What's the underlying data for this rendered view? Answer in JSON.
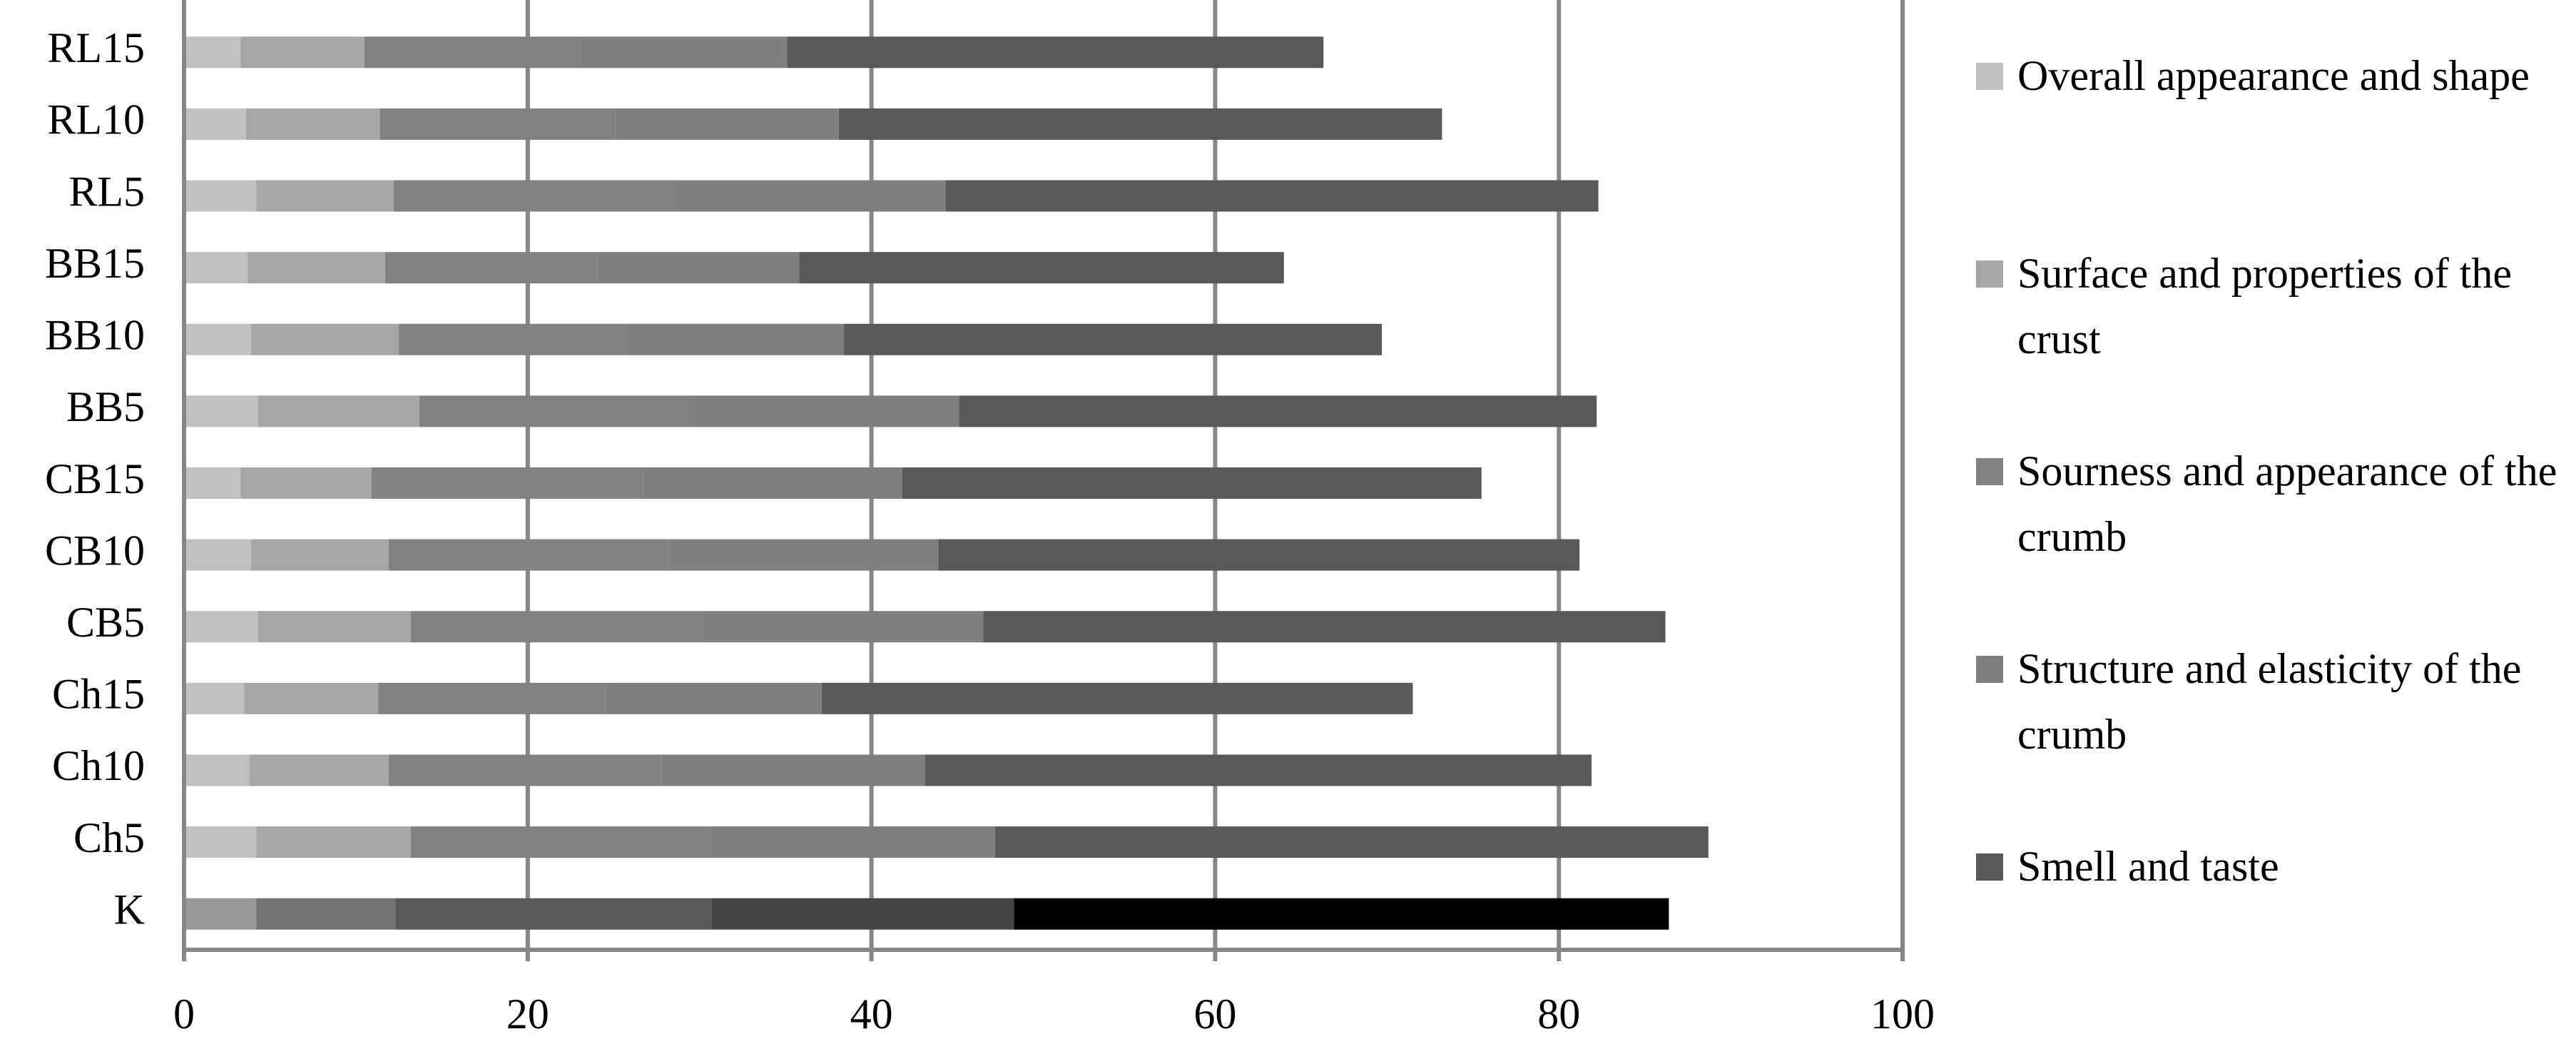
{
  "chart_data": {
    "type": "stacked-barh",
    "categories": [
      "RL15",
      "RL10",
      "RL5",
      "BB15",
      "BB10",
      "BB5",
      "CB15",
      "CB10",
      "CB5",
      "Ch15",
      "Ch10",
      "Ch5",
      "K"
    ],
    "series": [
      {
        "name": "Overall appearance and shape",
        "color": "#c0c0c0",
        "values": [
          3.3,
          3.6,
          4.2,
          3.7,
          3.9,
          4.3,
          3.3,
          3.9,
          4.3,
          3.5,
          3.8,
          4.2,
          4.2
        ],
        "colors": [
          "#c0c0c0",
          "#c0c0c0",
          "#c0c0c0",
          "#c0c0c0",
          "#c0c0c0",
          "#c0c0c0",
          "#c0c0c0",
          "#c0c0c0",
          "#c0c0c0",
          "#c0c0c0",
          "#c0c0c0",
          "#c0c0c0",
          "#999999"
        ]
      },
      {
        "name": "Surface and properties of the crust",
        "color": "#a6a6a6",
        "values": [
          7.2,
          7.8,
          8.0,
          8.0,
          8.6,
          9.4,
          7.6,
          8.0,
          8.9,
          7.8,
          8.1,
          9.0,
          8.1
        ],
        "colors": [
          "#a6a6a6",
          "#a6a6a6",
          "#a6a6a6",
          "#a6a6a6",
          "#a6a6a6",
          "#a6a6a6",
          "#a6a6a6",
          "#a6a6a6",
          "#a6a6a6",
          "#a6a6a6",
          "#a6a6a6",
          "#a6a6a6",
          "#737373"
        ]
      },
      {
        "name": "Sourness and appearance of the crumb",
        "color": "#818181",
        "values": [
          12.6,
          13.7,
          16.4,
          12.3,
          13.2,
          16.0,
          15.8,
          16.3,
          17.0,
          13.2,
          15.9,
          17.4,
          18.4
        ],
        "colors": [
          "#818181",
          "#818181",
          "#818181",
          "#818181",
          "#818181",
          "#818181",
          "#818181",
          "#818181",
          "#818181",
          "#818181",
          "#818181",
          "#818181",
          "#595959"
        ]
      },
      {
        "name": "Structure and elasticity of the crumb",
        "color": "#7f7f7f",
        "values": [
          12.0,
          13.0,
          15.7,
          11.8,
          12.7,
          15.4,
          15.1,
          15.7,
          16.3,
          12.6,
          15.3,
          16.6,
          17.6
        ],
        "colors": [
          "#7f7f7f",
          "#7f7f7f",
          "#7f7f7f",
          "#7f7f7f",
          "#7f7f7f",
          "#7f7f7f",
          "#7f7f7f",
          "#7f7f7f",
          "#7f7f7f",
          "#7f7f7f",
          "#7f7f7f",
          "#7f7f7f",
          "#454545"
        ]
      },
      {
        "name": "Smell and taste",
        "color": "#595959",
        "values": [
          31.2,
          35.1,
          38.0,
          28.2,
          31.3,
          37.1,
          33.7,
          37.3,
          39.7,
          34.4,
          38.8,
          41.5,
          38.1
        ],
        "colors": [
          "#595959",
          "#595959",
          "#595959",
          "#595959",
          "#595959",
          "#595959",
          "#595959",
          "#595959",
          "#595959",
          "#595959",
          "#595959",
          "#595959",
          "#000000"
        ]
      }
    ],
    "xlim": [
      0,
      100
    ],
    "xticks": [
      0,
      20,
      40,
      60,
      80,
      100
    ],
    "grid": true,
    "legend": "right"
  }
}
